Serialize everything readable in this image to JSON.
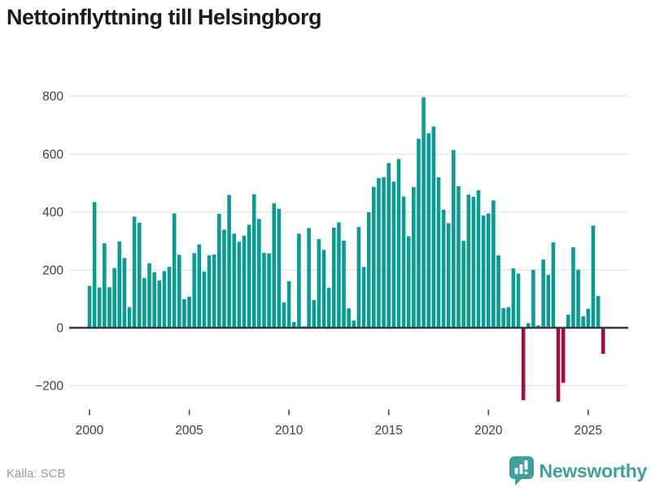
{
  "header": {
    "title": "Nettoinflyttning till Helsingborg"
  },
  "footer": {
    "source": "Källa: SCB",
    "brand": "Newsworthy"
  },
  "chart_data": {
    "type": "bar",
    "title": "Nettoinflyttning till Helsingborg",
    "xlabel": "",
    "ylabel": "",
    "frequency": "quarterly",
    "start_period": "2000-Q1",
    "end_period": "2025-Q4",
    "x_ticks": [
      2000,
      2005,
      2010,
      2015,
      2020,
      2025
    ],
    "y_ticks": [
      -200,
      0,
      200,
      400,
      600,
      800
    ],
    "ylim": [
      -280,
      860
    ],
    "grid": "horizontal-light",
    "legend": "none",
    "positive_color": "#089c94",
    "negative_color": "#9e1040",
    "values": [
      145,
      434,
      139,
      292,
      140,
      206,
      298,
      241,
      71,
      384,
      363,
      172,
      223,
      192,
      163,
      196,
      211,
      395,
      252,
      99,
      107,
      258,
      288,
      194,
      250,
      253,
      394,
      339,
      459,
      325,
      297,
      318,
      356,
      461,
      376,
      259,
      257,
      430,
      411,
      88,
      161,
      20,
      325,
      5,
      344,
      96,
      306,
      269,
      138,
      346,
      364,
      301,
      67,
      25,
      348,
      210,
      399,
      487,
      517,
      520,
      569,
      505,
      583,
      453,
      316,
      486,
      653,
      796,
      672,
      695,
      520,
      408,
      361,
      614,
      489,
      300,
      460,
      452,
      475,
      388,
      395,
      440,
      250,
      68,
      71,
      205,
      187,
      -250,
      16,
      200,
      8,
      236,
      183,
      295,
      -255,
      -190,
      45,
      278,
      201,
      40,
      66,
      353,
      110,
      -90
    ],
    "axis_text_color": "#3f3f3f",
    "gridline_color": "#e4e4e4",
    "zero_line_color": "#383838"
  }
}
